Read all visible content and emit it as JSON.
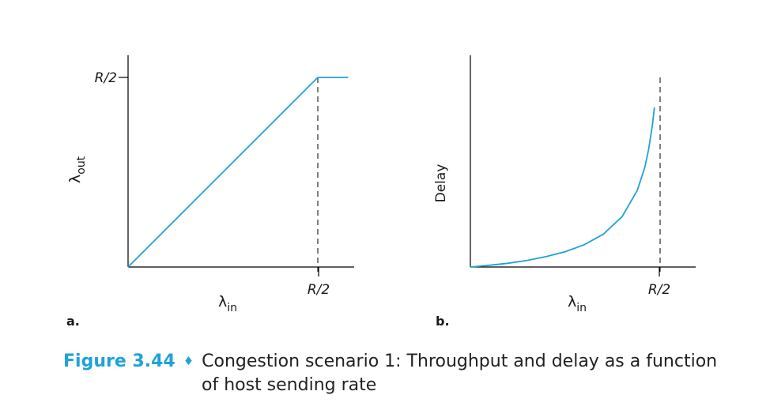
{
  "figure": {
    "number": "Figure 3.44",
    "separator": "♦",
    "caption_line1": "Congestion scenario 1: Throughput and delay as a function",
    "caption_line2": "of host sending rate"
  },
  "colors": {
    "curve": "#1fa2d8",
    "caption_number": "#1fa2d8",
    "axes": "#000000"
  },
  "chart_data": [
    {
      "type": "line",
      "panel_label": "a.",
      "xlabel_symbol": "λ",
      "xlabel_subscript": "in",
      "ylabel_symbol": "λ",
      "ylabel_subscript": "out",
      "x_tick_labels": [
        "R/2"
      ],
      "y_tick_labels": [
        "R/2"
      ],
      "xlim": [
        0,
        0.6
      ],
      "ylim": [
        0,
        0.6
      ],
      "guide_lines": [
        {
          "orientation": "vertical",
          "x": 0.5,
          "style": "dashed"
        }
      ],
      "series": [
        {
          "x": [
            0,
            0.5,
            0.58
          ],
          "y": [
            0,
            0.5,
            0.5
          ]
        }
      ],
      "grid": false
    },
    {
      "type": "line",
      "panel_label": "b.",
      "xlabel_symbol": "λ",
      "xlabel_subscript": "in",
      "ylabel": "Delay",
      "x_tick_labels": [
        "R/2"
      ],
      "xlim": [
        0,
        0.6
      ],
      "ylim": [
        0,
        60
      ],
      "guide_lines": [
        {
          "orientation": "vertical",
          "x": 0.5,
          "style": "dashed"
        }
      ],
      "series": [
        {
          "x": [
            0,
            0.05,
            0.1,
            0.15,
            0.2,
            0.25,
            0.3,
            0.35,
            0.4,
            0.44,
            0.46,
            0.47,
            0.48,
            0.485
          ],
          "y": [
            0.0,
            0.5,
            1.1,
            1.9,
            3.0,
            4.4,
            6.4,
            9.4,
            14.5,
            22.1,
            28.8,
            34.0,
            41.1,
            45.9
          ]
        }
      ],
      "grid": false
    }
  ]
}
